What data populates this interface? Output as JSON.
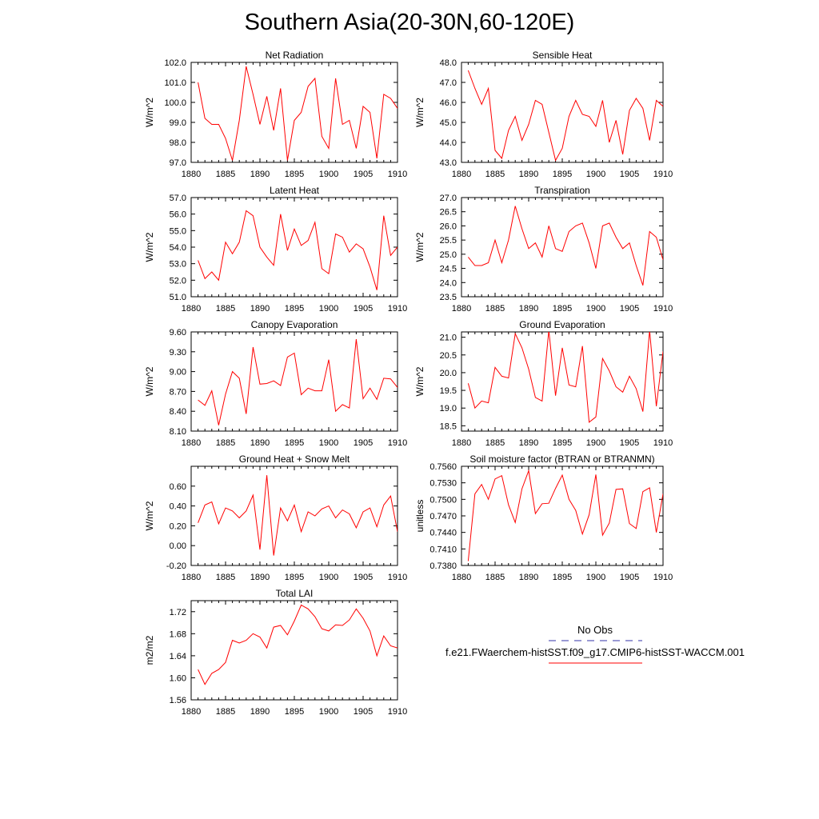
{
  "page": {
    "title": "Southern Asia(20-30N,60-120E)"
  },
  "legend": {
    "obs_label": "No Obs",
    "case_label": "f.e21.FWaerchem-histSST.f09_g17.CMIP6-histSST-WACCM.001",
    "obs_color": "#3333aa",
    "case_color": "#ff0000"
  },
  "chart_data": [
    {
      "type": "line",
      "title": "Net Radiation",
      "xlabel": "",
      "ylabel": "W/m^2",
      "xlim": [
        1880,
        1910
      ],
      "ylim": [
        97.0,
        102.0
      ],
      "xticks": [
        "1880",
        "1885",
        "1890",
        "1895",
        "1900",
        "1905",
        "1910"
      ],
      "yticks": [
        "97.0",
        "98.0",
        "99.0",
        "100.0",
        "101.0",
        "102.0"
      ],
      "x": [
        1881,
        1882,
        1883,
        1884,
        1885,
        1886,
        1887,
        1888,
        1889,
        1890,
        1891,
        1892,
        1893,
        1894,
        1895,
        1896,
        1897,
        1898,
        1899,
        1900,
        1901,
        1902,
        1903,
        1904,
        1905,
        1906,
        1907,
        1908,
        1909,
        1910
      ],
      "series": [
        {
          "color": "#ff0000",
          "values": [
            101.0,
            99.2,
            98.9,
            98.9,
            98.2,
            97.1,
            99.1,
            101.8,
            100.4,
            98.9,
            100.3,
            98.6,
            100.7,
            97.1,
            99.1,
            99.5,
            100.8,
            101.2,
            98.3,
            97.7,
            101.2,
            98.9,
            99.1,
            97.7,
            99.8,
            99.5,
            97.2,
            100.4,
            100.2,
            99.7
          ]
        }
      ]
    },
    {
      "type": "line",
      "title": "Sensible Heat",
      "xlabel": "",
      "ylabel": "W/m^2",
      "xlim": [
        1880,
        1910
      ],
      "ylim": [
        43.0,
        48.0
      ],
      "xticks": [
        "1880",
        "1885",
        "1890",
        "1895",
        "1900",
        "1905",
        "1910"
      ],
      "yticks": [
        "43.0",
        "44.0",
        "45.0",
        "46.0",
        "47.0",
        "48.0"
      ],
      "x": [
        1881,
        1882,
        1883,
        1884,
        1885,
        1886,
        1887,
        1888,
        1889,
        1890,
        1891,
        1892,
        1893,
        1894,
        1895,
        1896,
        1897,
        1898,
        1899,
        1900,
        1901,
        1902,
        1903,
        1904,
        1905,
        1906,
        1907,
        1908,
        1909,
        1910
      ],
      "series": [
        {
          "color": "#ff0000",
          "values": [
            47.6,
            46.7,
            45.9,
            46.7,
            43.6,
            43.2,
            44.6,
            45.3,
            44.1,
            44.9,
            46.1,
            45.9,
            44.5,
            43.1,
            43.7,
            45.3,
            46.1,
            45.4,
            45.3,
            44.8,
            46.1,
            44.0,
            45.1,
            43.4,
            45.6,
            46.2,
            45.7,
            44.1,
            46.1,
            45.8
          ]
        }
      ]
    },
    {
      "type": "line",
      "title": "Latent Heat",
      "xlabel": "",
      "ylabel": "W/m^2",
      "xlim": [
        1880,
        1910
      ],
      "ylim": [
        51.0,
        57.0
      ],
      "xticks": [
        "1880",
        "1885",
        "1890",
        "1895",
        "1900",
        "1905",
        "1910"
      ],
      "yticks": [
        "51.0",
        "52.0",
        "53.0",
        "54.0",
        "55.0",
        "56.0",
        "57.0"
      ],
      "x": [
        1881,
        1882,
        1883,
        1884,
        1885,
        1886,
        1887,
        1888,
        1889,
        1890,
        1891,
        1892,
        1893,
        1894,
        1895,
        1896,
        1897,
        1898,
        1899,
        1900,
        1901,
        1902,
        1903,
        1904,
        1905,
        1906,
        1907,
        1908,
        1909,
        1910
      ],
      "series": [
        {
          "color": "#ff0000",
          "values": [
            53.2,
            52.1,
            52.5,
            52.0,
            54.3,
            53.6,
            54.3,
            56.2,
            55.9,
            54.0,
            53.4,
            52.9,
            56.0,
            53.8,
            55.1,
            54.1,
            54.4,
            55.5,
            52.7,
            52.4,
            54.8,
            54.6,
            53.7,
            54.2,
            53.9,
            52.8,
            51.4,
            55.9,
            53.5,
            54.0
          ]
        }
      ]
    },
    {
      "type": "line",
      "title": "Transpiration",
      "xlabel": "",
      "ylabel": "W/m^2",
      "xlim": [
        1880,
        1910
      ],
      "ylim": [
        23.5,
        27.0
      ],
      "xticks": [
        "1880",
        "1885",
        "1890",
        "1895",
        "1900",
        "1905",
        "1910"
      ],
      "yticks": [
        "23.5",
        "24.0",
        "24.5",
        "25.0",
        "25.5",
        "26.0",
        "26.5",
        "27.0"
      ],
      "x": [
        1881,
        1882,
        1883,
        1884,
        1885,
        1886,
        1887,
        1888,
        1889,
        1890,
        1891,
        1892,
        1893,
        1894,
        1895,
        1896,
        1897,
        1898,
        1899,
        1900,
        1901,
        1902,
        1903,
        1904,
        1905,
        1906,
        1907,
        1908,
        1909,
        1910
      ],
      "series": [
        {
          "color": "#ff0000",
          "values": [
            24.9,
            24.6,
            24.6,
            24.7,
            25.5,
            24.7,
            25.5,
            26.7,
            25.9,
            25.2,
            25.4,
            24.9,
            26.0,
            25.2,
            25.1,
            25.8,
            26.0,
            26.1,
            25.4,
            24.5,
            26.0,
            26.1,
            25.6,
            25.2,
            25.4,
            24.6,
            23.9,
            25.8,
            25.6,
            24.8
          ]
        }
      ]
    },
    {
      "type": "line",
      "title": "Canopy Evaporation",
      "xlabel": "",
      "ylabel": "W/m^2",
      "xlim": [
        1880,
        1910
      ],
      "ylim": [
        8.1,
        9.6
      ],
      "xticks": [
        "1880",
        "1885",
        "1890",
        "1895",
        "1900",
        "1905",
        "1910"
      ],
      "yticks": [
        "8.10",
        "8.40",
        "8.70",
        "9.00",
        "9.30",
        "9.60"
      ],
      "x": [
        1881,
        1882,
        1883,
        1884,
        1885,
        1886,
        1887,
        1888,
        1889,
        1890,
        1891,
        1892,
        1893,
        1894,
        1895,
        1896,
        1897,
        1898,
        1899,
        1900,
        1901,
        1902,
        1903,
        1904,
        1905,
        1906,
        1907,
        1908,
        1909,
        1910
      ],
      "series": [
        {
          "color": "#ff0000",
          "values": [
            8.57,
            8.49,
            8.71,
            8.19,
            8.66,
            9.0,
            8.9,
            8.36,
            9.37,
            8.81,
            8.82,
            8.86,
            8.79,
            9.22,
            9.28,
            8.65,
            8.75,
            8.71,
            8.71,
            9.18,
            8.4,
            8.5,
            8.45,
            9.49,
            8.59,
            8.75,
            8.58,
            8.9,
            8.89,
            8.76
          ]
        }
      ]
    },
    {
      "type": "line",
      "title": "Ground Evaporation",
      "xlabel": "",
      "ylabel": "W/m^2",
      "xlim": [
        1880,
        1910
      ],
      "ylim": [
        18.35,
        21.15
      ],
      "xticks": [
        "1880",
        "1885",
        "1890",
        "1895",
        "1900",
        "1905",
        "1910"
      ],
      "yticks": [
        "18.5",
        "19.0",
        "19.5",
        "20.0",
        "20.5",
        "21.0"
      ],
      "x": [
        1881,
        1882,
        1883,
        1884,
        1885,
        1886,
        1887,
        1888,
        1889,
        1890,
        1891,
        1892,
        1893,
        1894,
        1895,
        1896,
        1897,
        1898,
        1899,
        1900,
        1901,
        1902,
        1903,
        1904,
        1905,
        1906,
        1907,
        1908,
        1909,
        1910
      ],
      "series": [
        {
          "color": "#ff0000",
          "values": [
            19.7,
            19.0,
            19.2,
            19.15,
            20.15,
            19.9,
            19.85,
            21.1,
            20.7,
            20.1,
            19.3,
            19.2,
            21.2,
            19.35,
            20.7,
            19.65,
            19.6,
            20.75,
            18.6,
            18.75,
            20.4,
            20.05,
            19.6,
            19.45,
            19.9,
            19.55,
            18.9,
            21.2,
            19.05,
            20.6
          ]
        }
      ]
    },
    {
      "type": "line",
      "title": "Ground Heat + Snow Melt",
      "xlabel": "",
      "ylabel": "W/m^2",
      "xlim": [
        1880,
        1910
      ],
      "ylim": [
        -0.2,
        0.8
      ],
      "xticks": [
        "1880",
        "1885",
        "1890",
        "1895",
        "1900",
        "1905",
        "1910"
      ],
      "yticks": [
        "-0.20",
        "0.00",
        "0.20",
        "0.40",
        "0.60"
      ],
      "x": [
        1881,
        1882,
        1883,
        1884,
        1885,
        1886,
        1887,
        1888,
        1889,
        1890,
        1891,
        1892,
        1893,
        1894,
        1895,
        1896,
        1897,
        1898,
        1899,
        1900,
        1901,
        1902,
        1903,
        1904,
        1905,
        1906,
        1907,
        1908,
        1909,
        1910
      ],
      "series": [
        {
          "color": "#ff0000",
          "values": [
            0.23,
            0.41,
            0.44,
            0.22,
            0.38,
            0.35,
            0.28,
            0.35,
            0.51,
            -0.04,
            0.71,
            -0.1,
            0.38,
            0.25,
            0.41,
            0.14,
            0.34,
            0.3,
            0.37,
            0.4,
            0.28,
            0.36,
            0.32,
            0.18,
            0.34,
            0.38,
            0.19,
            0.41,
            0.5,
            0.14
          ]
        }
      ]
    },
    {
      "type": "line",
      "title": "Soil moisture factor (BTRAN or BTRANMN)",
      "xlabel": "",
      "ylabel": "unitless",
      "xlim": [
        1880,
        1910
      ],
      "ylim": [
        0.738,
        0.756
      ],
      "xticks": [
        "1880",
        "1885",
        "1890",
        "1895",
        "1900",
        "1905",
        "1910"
      ],
      "yticks": [
        "0.7380",
        "0.7410",
        "0.7440",
        "0.7470",
        "0.7500",
        "0.7530",
        "0.7560"
      ],
      "x": [
        1881,
        1882,
        1883,
        1884,
        1885,
        1886,
        1887,
        1888,
        1889,
        1890,
        1891,
        1892,
        1893,
        1894,
        1895,
        1896,
        1897,
        1898,
        1899,
        1900,
        1901,
        1902,
        1903,
        1904,
        1905,
        1906,
        1907,
        1908,
        1909,
        1910
      ],
      "series": [
        {
          "color": "#ff0000",
          "values": [
            0.7388,
            0.751,
            0.7527,
            0.75,
            0.7537,
            0.7543,
            0.749,
            0.7458,
            0.7519,
            0.7552,
            0.7474,
            0.7492,
            0.7493,
            0.752,
            0.7544,
            0.75,
            0.748,
            0.7437,
            0.7472,
            0.7545,
            0.7435,
            0.7457,
            0.7518,
            0.7519,
            0.7456,
            0.7447,
            0.7514,
            0.7521,
            0.744,
            0.751
          ]
        }
      ]
    },
    {
      "type": "line",
      "title": "Total LAI",
      "xlabel": "",
      "ylabel": "m2/m2",
      "xlim": [
        1880,
        1910
      ],
      "ylim": [
        1.56,
        1.74
      ],
      "xticks": [
        "1880",
        "1885",
        "1890",
        "1895",
        "1900",
        "1905",
        "1910"
      ],
      "yticks": [
        "1.56",
        "1.60",
        "1.64",
        "1.68",
        "1.72"
      ],
      "x": [
        1881,
        1882,
        1883,
        1884,
        1885,
        1886,
        1887,
        1888,
        1889,
        1890,
        1891,
        1892,
        1893,
        1894,
        1895,
        1896,
        1897,
        1898,
        1899,
        1900,
        1901,
        1902,
        1903,
        1904,
        1905,
        1906,
        1907,
        1908,
        1909,
        1910
      ],
      "series": [
        {
          "color": "#ff0000",
          "values": [
            1.615,
            1.588,
            1.608,
            1.615,
            1.628,
            1.668,
            1.663,
            1.668,
            1.68,
            1.674,
            1.654,
            1.692,
            1.695,
            1.678,
            1.703,
            1.732,
            1.725,
            1.711,
            1.689,
            1.685,
            1.696,
            1.695,
            1.705,
            1.725,
            1.708,
            1.685,
            1.64,
            1.676,
            1.658,
            1.654
          ]
        }
      ]
    }
  ]
}
